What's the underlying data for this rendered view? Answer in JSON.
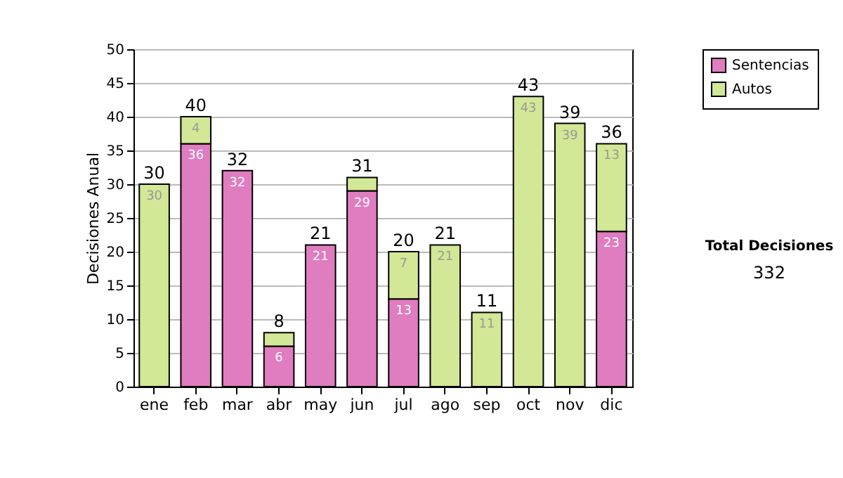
{
  "chart_data": {
    "type": "bar",
    "stacked": true,
    "ylabel": "Decisiones Anual",
    "categories": [
      "ene",
      "feb",
      "mar",
      "abr",
      "may",
      "jun",
      "jul",
      "ago",
      "sep",
      "oct",
      "nov",
      "dic"
    ],
    "series": [
      {
        "name": "Sentencias",
        "color": "#e07cc0",
        "values": [
          null,
          36,
          32,
          6,
          21,
          29,
          13,
          null,
          null,
          null,
          null,
          23
        ],
        "value_labels": [
          null,
          "36",
          "32",
          "6",
          "21",
          "29",
          "13",
          null,
          null,
          null,
          null,
          "23"
        ]
      },
      {
        "name": "Autos",
        "color": "#d2e896",
        "values": [
          30,
          4,
          null,
          2,
          null,
          2,
          7,
          21,
          11,
          43,
          39,
          13
        ],
        "value_labels": [
          "30",
          "4",
          null,
          null,
          null,
          null,
          "7",
          "21",
          "11",
          "43",
          "39",
          "13"
        ]
      }
    ],
    "totals": [
      "30",
      "40",
      "32",
      "8",
      "21",
      "31",
      "20",
      "21",
      "11",
      "43",
      "39",
      "36"
    ],
    "ylim": [
      0,
      50
    ],
    "yticks": [
      0,
      5,
      10,
      15,
      20,
      25,
      30,
      35,
      40,
      45,
      50
    ],
    "grid": "y",
    "legend": "right",
    "annotations": [
      "Total Decisiones",
      "332"
    ]
  }
}
